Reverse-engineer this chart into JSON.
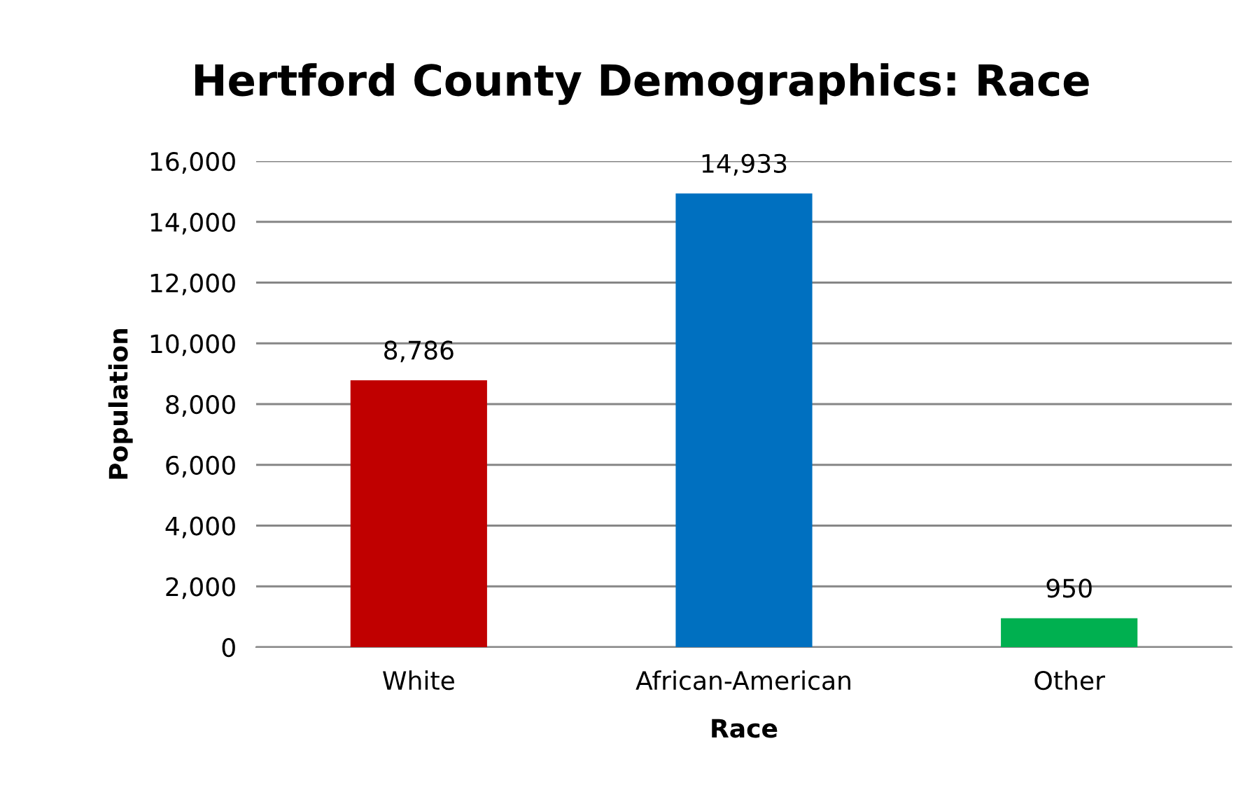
{
  "chart_data": {
    "type": "bar",
    "title": "Hertford County Demographics: Race",
    "xlabel": "Race",
    "ylabel": "Population",
    "categories": [
      "White",
      "African-American",
      "Other"
    ],
    "values": [
      8786,
      14933,
      950
    ],
    "value_labels": [
      "8,786",
      "14,933",
      "950"
    ],
    "colors": [
      "#c00000",
      "#0070c0",
      "#00b050"
    ],
    "ylim": [
      0,
      16000
    ],
    "yticks": [
      {
        "value": 0,
        "label": "0"
      },
      {
        "value": 2000,
        "label": "2,000"
      },
      {
        "value": 4000,
        "label": "4,000"
      },
      {
        "value": 6000,
        "label": "6,000"
      },
      {
        "value": 8000,
        "label": "8,000"
      },
      {
        "value": 10000,
        "label": "10,000"
      },
      {
        "value": 12000,
        "label": "12,000"
      },
      {
        "value": 14000,
        "label": "14,000"
      },
      {
        "value": 16000,
        "label": "16,000"
      }
    ],
    "grid": "y",
    "legend": false
  }
}
